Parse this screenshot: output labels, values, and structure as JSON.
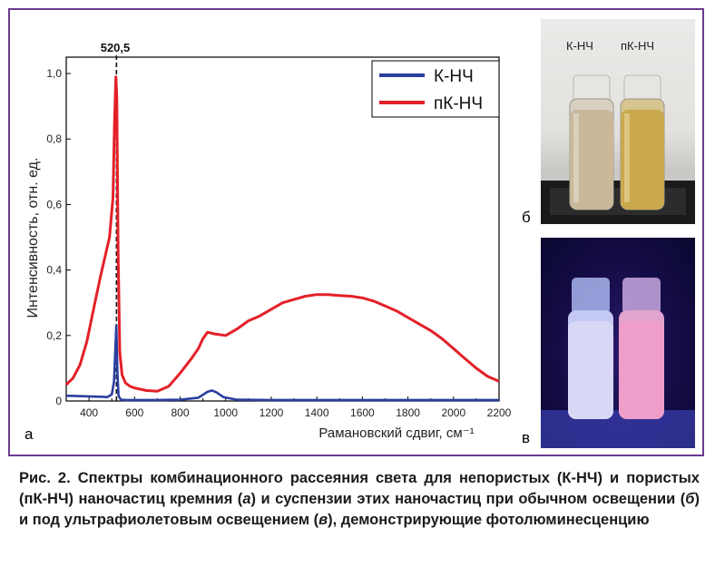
{
  "chart_data": {
    "type": "line",
    "xlabel": "Рамановский сдвиг, см⁻¹",
    "ylabel": "Интенсивность, отн. ед.",
    "xlim": [
      300,
      2200
    ],
    "ylim": [
      0,
      1.05
    ],
    "xticks": [
      "400",
      "600",
      "800",
      "1000",
      "1200",
      "1400",
      "1600",
      "1800",
      "2000",
      "2200"
    ],
    "yticks": [
      "0",
      "0,2",
      "0,4",
      "0,6",
      "0,8",
      "1,0"
    ],
    "peak_label": "520,5",
    "peak_x": 520.5,
    "legend_position": "top-right",
    "series": [
      {
        "name": "К-НЧ",
        "color": "#2b3f9e",
        "x": [
          300,
          350,
          400,
          450,
          480,
          500,
          510,
          515,
          520,
          525,
          530,
          540,
          560,
          600,
          700,
          800,
          880,
          920,
          940,
          960,
          990,
          1050,
          1200,
          1600,
          2000,
          2200
        ],
        "y": [
          0.016,
          0.015,
          0.014,
          0.013,
          0.012,
          0.02,
          0.06,
          0.15,
          0.23,
          0.08,
          0.015,
          0.004,
          0.003,
          0.003,
          0.003,
          0.004,
          0.01,
          0.028,
          0.032,
          0.026,
          0.012,
          0.004,
          0.003,
          0.003,
          0.003,
          0.003
        ]
      },
      {
        "name": "пК-НЧ",
        "color": "#e32028",
        "x": [
          300,
          330,
          360,
          390,
          420,
          450,
          470,
          490,
          505,
          512,
          518,
          522,
          528,
          535,
          545,
          560,
          580,
          600,
          650,
          700,
          750,
          800,
          850,
          880,
          900,
          920,
          950,
          1000,
          1050,
          1100,
          1150,
          1200,
          1250,
          1300,
          1350,
          1400,
          1450,
          1500,
          1550,
          1600,
          1650,
          1700,
          1750,
          1800,
          1850,
          1900,
          1950,
          2000,
          2050,
          2100,
          2150,
          2200
        ],
        "y": [
          0.05,
          0.07,
          0.11,
          0.18,
          0.28,
          0.38,
          0.44,
          0.5,
          0.62,
          0.85,
          0.99,
          0.93,
          0.45,
          0.15,
          0.08,
          0.055,
          0.045,
          0.04,
          0.032,
          0.03,
          0.045,
          0.085,
          0.13,
          0.16,
          0.19,
          0.21,
          0.205,
          0.2,
          0.22,
          0.245,
          0.26,
          0.28,
          0.3,
          0.31,
          0.32,
          0.325,
          0.325,
          0.322,
          0.32,
          0.315,
          0.305,
          0.29,
          0.275,
          0.255,
          0.235,
          0.215,
          0.19,
          0.16,
          0.13,
          0.1,
          0.075,
          0.06
        ]
      }
    ]
  },
  "panels": {
    "a_letter": "а",
    "b_letter": "б",
    "c_letter": "в",
    "vial_label_1": "К-НЧ",
    "vial_label_2": "пК-НЧ"
  },
  "colors": {
    "frame": "#6d3a8f"
  },
  "caption": {
    "fig_label": "Рис. 2.",
    "part1": " Спектры комбинационного рассеяния света для непористых (К-НЧ) и пористых (пК-НЧ) наночастиц кремния (",
    "ref_a": "а",
    "part2": ") и суспензии этих наночастиц при обычном освещении (",
    "ref_b": "б",
    "part3": ") и под ультрафиолетовым освещением (",
    "ref_c": "в",
    "part4": "), демонстрирующие фотолюминесценцию"
  }
}
